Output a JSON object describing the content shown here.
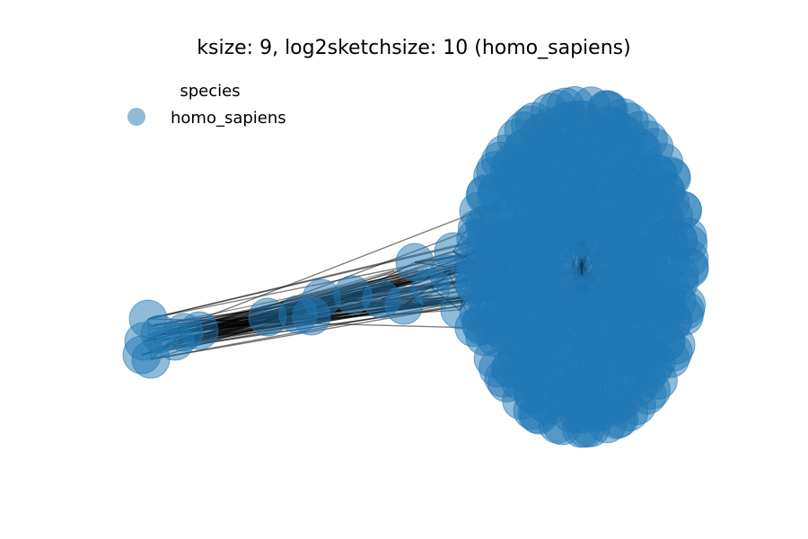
{
  "figure": {
    "title": "ksize: 9, log2sketchsize: 10 (homo_sapiens)"
  },
  "legend": {
    "title": "species",
    "entries": [
      {
        "label": "homo_sapiens",
        "color": "#1f77b4"
      }
    ]
  },
  "graph": {
    "type": "network",
    "node_color": "#1f77b4",
    "node_alpha": 0.5,
    "edge_color": "#000000",
    "edge_alpha": 0.5
  }
}
